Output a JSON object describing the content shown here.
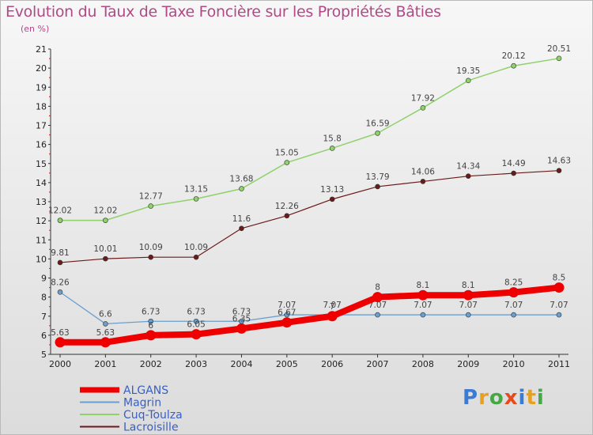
{
  "title": "Evolution du Taux de Taxe Foncière sur les Propriétés Bâties",
  "subtitle": "(en %)",
  "logo": "Proxiti",
  "chart_data": {
    "type": "line",
    "title": "Evolution du Taux de Taxe Foncière sur les Propriétés Bâties",
    "ylabel": "(en %)",
    "xlabel": "",
    "x": [
      "2000",
      "2001",
      "2002",
      "2003",
      "2004",
      "2005",
      "2006",
      "2007",
      "2008",
      "2009",
      "2010",
      "2011"
    ],
    "ylim": [
      5,
      21
    ],
    "yticks": [
      5,
      6,
      7,
      8,
      9,
      10,
      11,
      12,
      13,
      14,
      15,
      16,
      17,
      18,
      19,
      20,
      21
    ],
    "grid": false,
    "legend": "bottom-left",
    "series": [
      {
        "name": "Lacroisille",
        "color": "#6b1a1a",
        "width": 1.2,
        "marker": true,
        "values": [
          9.81,
          10.01,
          10.09,
          10.09,
          11.6,
          12.26,
          13.13,
          13.79,
          14.06,
          14.34,
          14.49,
          14.63
        ],
        "labels": [
          "9.81",
          "10.01",
          "10.09",
          "10.09",
          "11.6",
          "12.26",
          "13.13",
          "13.79",
          "14.06",
          "14.34",
          "14.49",
          "14.63"
        ]
      },
      {
        "name": "Cuq-Toulza",
        "color": "#8fd16b",
        "width": 1.5,
        "marker": true,
        "values": [
          12.02,
          12.02,
          12.77,
          13.15,
          13.68,
          15.05,
          15.8,
          16.59,
          17.92,
          19.35,
          20.12,
          20.51
        ],
        "labels": [
          "12.02",
          "12.02",
          "12.77",
          "13.15",
          "13.68",
          "15.05",
          "15.8",
          "16.59",
          "17.92",
          "19.35",
          "20.12",
          "20.51"
        ]
      },
      {
        "name": "Magrin",
        "color": "#6a9fd0",
        "width": 1.3,
        "marker": true,
        "values": [
          8.26,
          6.6,
          6.73,
          6.73,
          6.73,
          7.07,
          7.07,
          7.07,
          7.07,
          7.07,
          7.07,
          7.07
        ],
        "labels": [
          "8.26",
          "6.6",
          "6.73",
          "6.73",
          "6.73",
          "7.07",
          "7.07",
          "7.07",
          "7.07",
          "7.07",
          "7.07",
          "7.07"
        ]
      },
      {
        "name": "ALGANS",
        "color": "#ee0000",
        "width": 8,
        "marker": true,
        "values": [
          5.63,
          5.63,
          6,
          6.05,
          6.35,
          6.67,
          7,
          8,
          8.1,
          8.1,
          8.25,
          8.5
        ],
        "labels": [
          "5.63",
          "5.63",
          "6",
          "6.05",
          "6.35",
          "6.67",
          "7",
          "8",
          "8.1",
          "8.1",
          "8.25",
          "8.5"
        ]
      }
    ],
    "legend_entries": [
      {
        "name": "ALGANS",
        "color": "#ee0000",
        "thick": true
      },
      {
        "name": "Magrin",
        "color": "#6a9fd0",
        "thick": false
      },
      {
        "name": "Cuq-Toulza",
        "color": "#8fd16b",
        "thick": false
      },
      {
        "name": "Lacroisille",
        "color": "#6b1a1a",
        "thick": false
      }
    ]
  }
}
